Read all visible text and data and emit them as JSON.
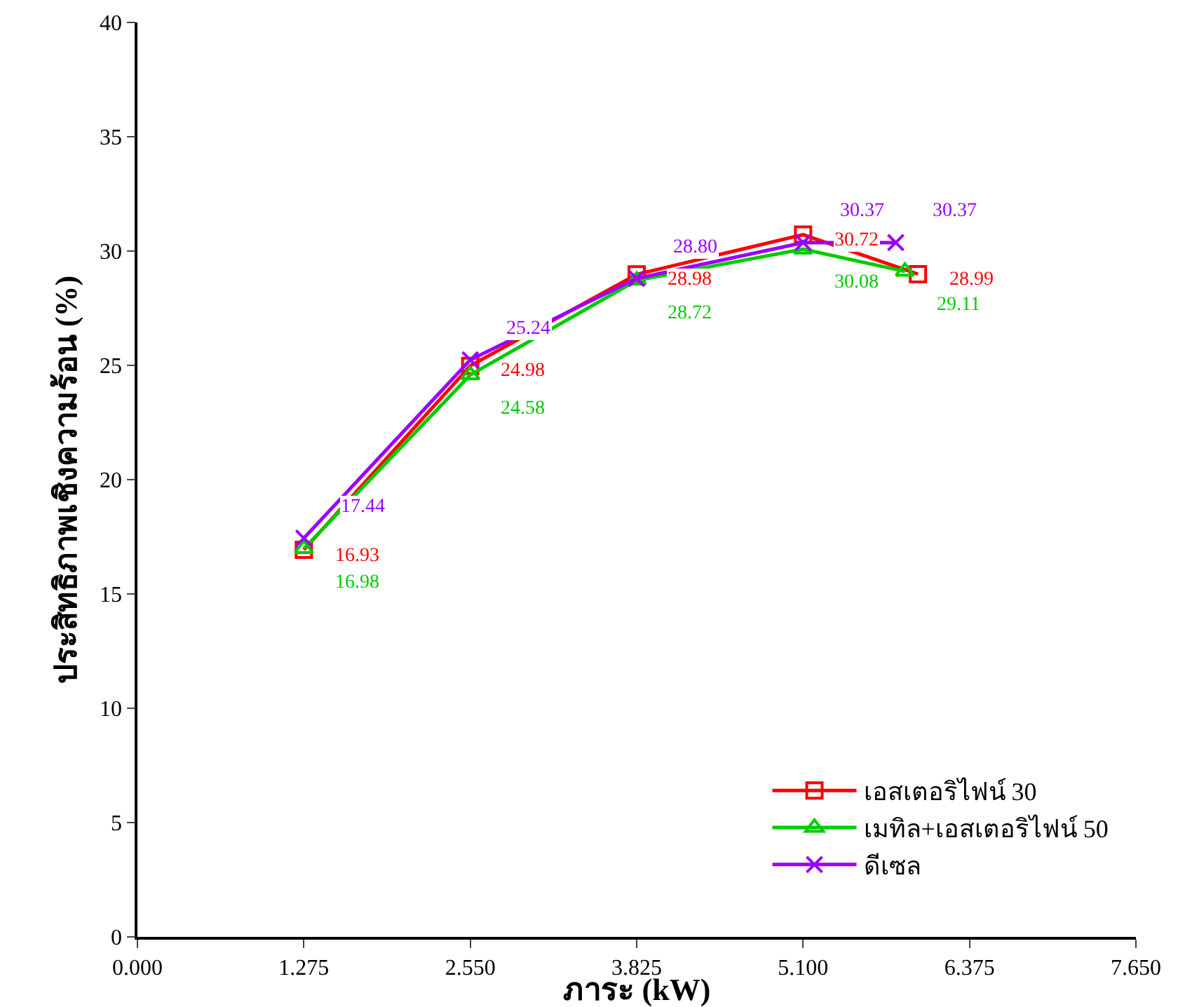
{
  "chart_data": {
    "type": "line",
    "xlabel": "ภาระ (kW)",
    "ylabel": "ประสิทธิภาพเชิงความร้อน (%)",
    "xlim": [
      0,
      7.65
    ],
    "xticks": [
      {
        "value": 0,
        "label": "0.000"
      },
      {
        "value": 1.275,
        "label": "1.275"
      },
      {
        "value": 2.55,
        "label": "2.550"
      },
      {
        "value": 3.825,
        "label": "3.825"
      },
      {
        "value": 5.1,
        "label": "5.100"
      },
      {
        "value": 6.375,
        "label": "6.375"
      },
      {
        "value": 7.65,
        "label": "7.650"
      }
    ],
    "ylim": [
      0,
      40
    ],
    "yticks": [
      0,
      5,
      10,
      15,
      20,
      25,
      30,
      35,
      40
    ],
    "grid": false,
    "legend": "bottom right",
    "line_style": "solid",
    "series": [
      {
        "name": "เอสเตอริไฟน์ 30",
        "color": "#ff0000",
        "marker": "square",
        "x": [
          1.275,
          2.55,
          3.825,
          5.1,
          5.98
        ],
        "values": [
          16.93,
          24.98,
          28.98,
          30.72,
          28.99
        ],
        "value_labels": [
          "16.93",
          "24.98",
          "28.98",
          "30.72",
          "28.99"
        ]
      },
      {
        "name": "เมทิล+เอสเตอริไฟน์ 50",
        "color": "#00cc00",
        "marker": "triangle",
        "x": [
          1.275,
          2.55,
          3.825,
          5.1,
          5.88
        ],
        "values": [
          16.98,
          24.58,
          28.72,
          30.08,
          29.11
        ],
        "value_labels": [
          "16.98",
          "24.58",
          "28.72",
          "30.08",
          "29.11"
        ]
      },
      {
        "name": "ดีเซล",
        "color": "#9900ff",
        "marker": "cross",
        "x": [
          1.275,
          2.55,
          3.825,
          5.1,
          5.81
        ],
        "values": [
          17.44,
          25.24,
          28.8,
          30.37,
          30.37
        ],
        "value_labels": [
          "17.44",
          "25.24",
          "28.80",
          "30.37",
          "30.37"
        ]
      }
    ]
  }
}
